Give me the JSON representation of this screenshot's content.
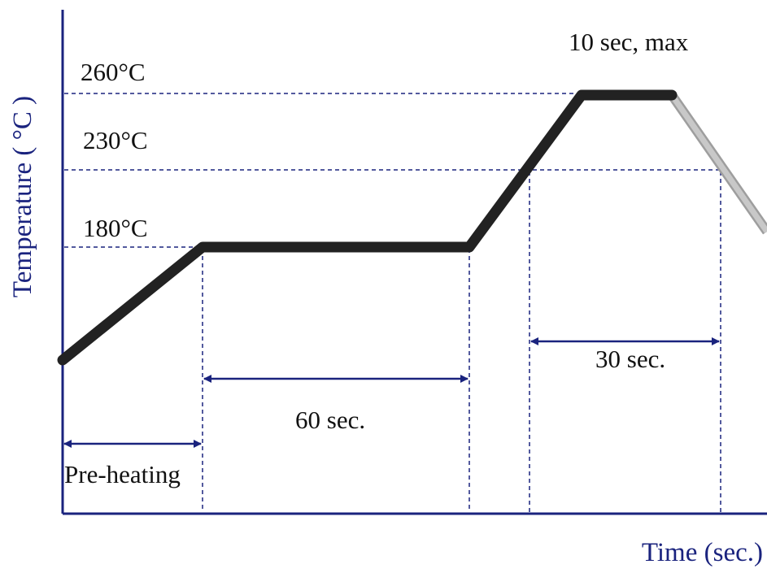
{
  "diagram": {
    "y_axis_label": "Temperature ( °C )",
    "x_axis_label": "Time (sec.)",
    "temperature_levels": [
      {
        "label": "260°C",
        "value": 260
      },
      {
        "label": "230°C",
        "value": 230
      },
      {
        "label": "180°C",
        "value": 180
      }
    ],
    "annotations": {
      "peak_hold": "10 sec, max",
      "soak": "60 sec.",
      "above_230": "30 sec.",
      "preheat": "Pre-heating"
    },
    "colors": {
      "axis": "#1a237e",
      "profile": "#222222",
      "cooling": "#b5b5b5",
      "guides": "#1a237e",
      "text": "#111111"
    }
  }
}
